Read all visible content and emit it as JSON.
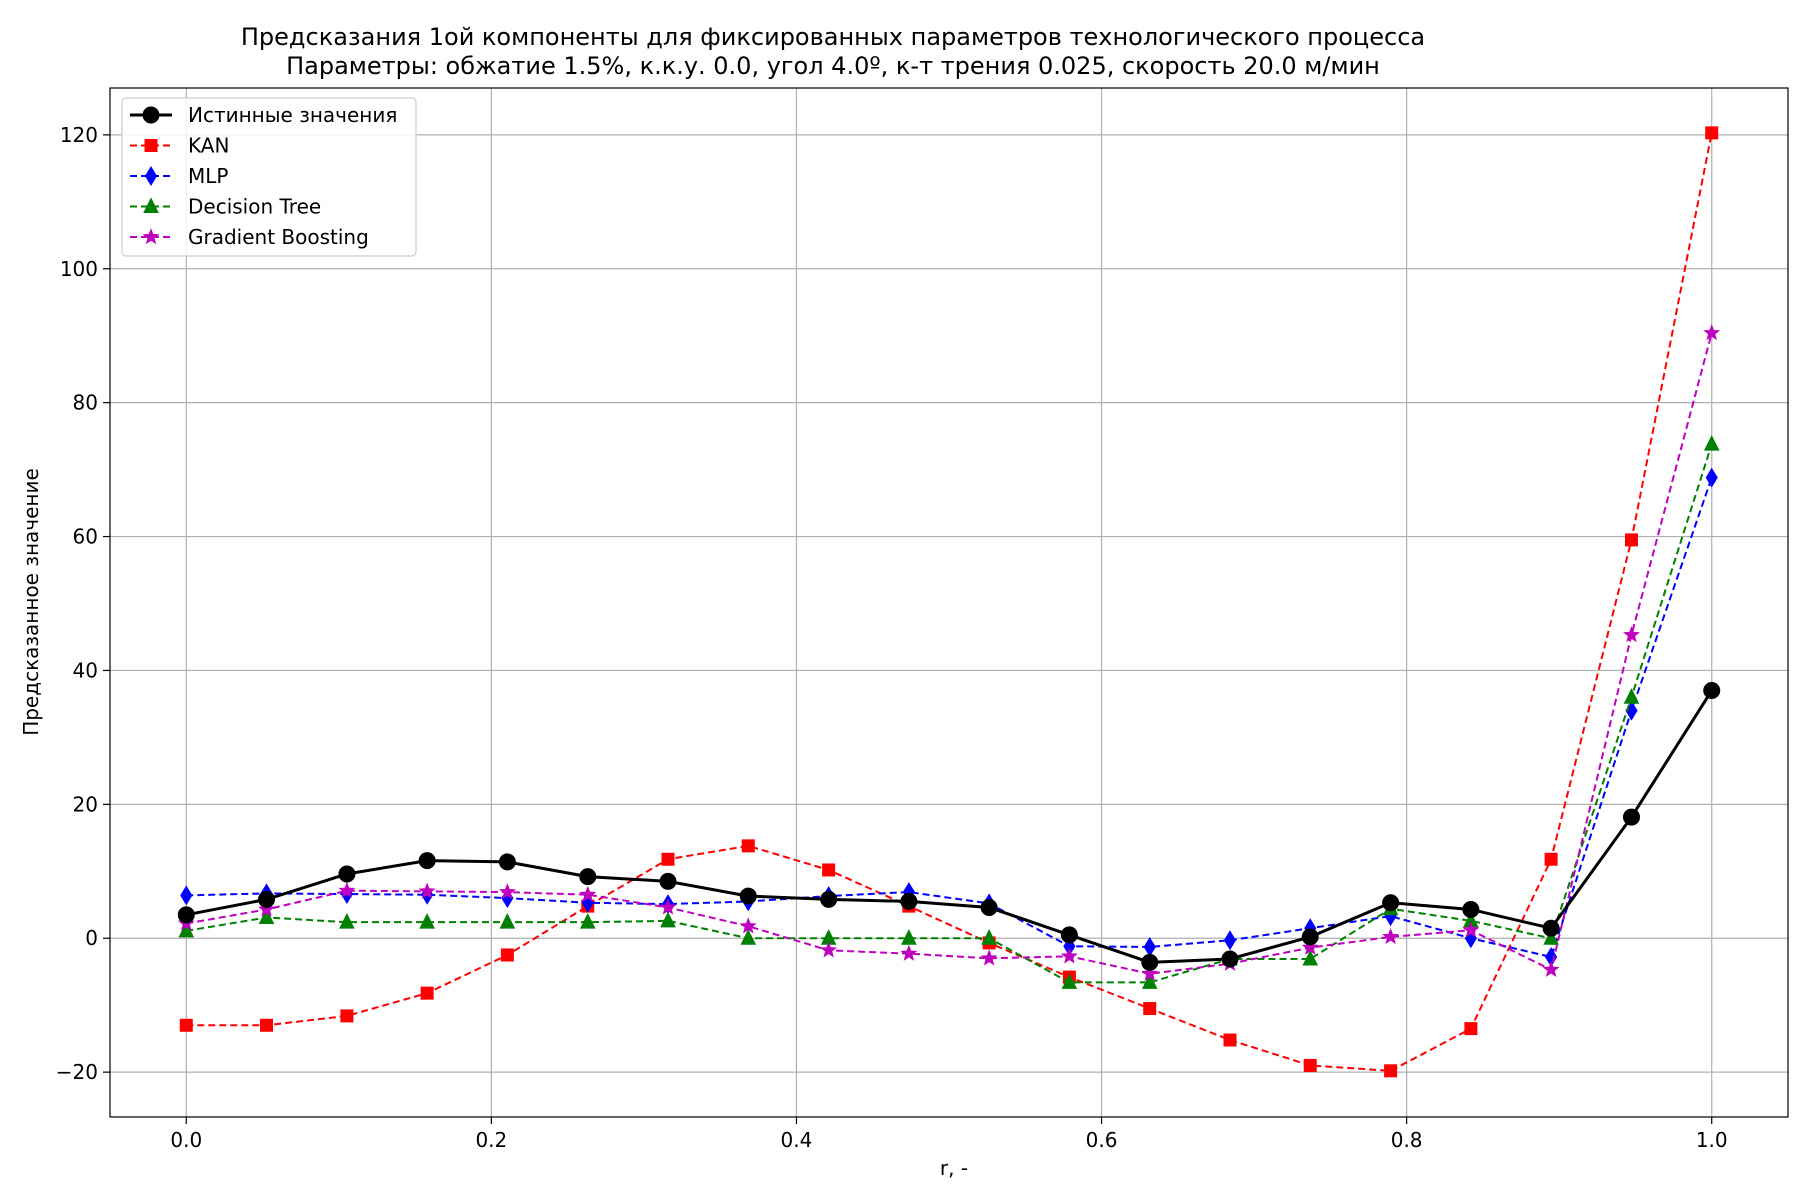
{
  "chart_data": {
    "type": "line",
    "title": "Предсказания 1ой компоненты для фиксированных параметров технологического процесса",
    "subtitle": "Параметры: обжатие 1.5%, к.к.у. 0.0, угол 4.0º, к-т трения 0.025, скорость 20.0 м/мин",
    "xlabel": "r, -",
    "ylabel": "Предсказанное значение",
    "xlim": [
      -0.05,
      1.05
    ],
    "ylim": [
      -26.7,
      127
    ],
    "xticks": [
      0.0,
      0.2,
      0.4,
      0.6,
      0.8,
      1.0
    ],
    "xtick_labels": [
      "0.0",
      "0.2",
      "0.4",
      "0.6",
      "0.8",
      "1.0"
    ],
    "yticks": [
      -20,
      0,
      20,
      40,
      60,
      80,
      100,
      120
    ],
    "ytick_labels": [
      "−20",
      "0",
      "20",
      "40",
      "60",
      "80",
      "100",
      "120"
    ],
    "grid": true,
    "legend_position": "top-left",
    "x": [
      0.0,
      0.0526,
      0.1053,
      0.1579,
      0.2105,
      0.2632,
      0.3158,
      0.3684,
      0.4211,
      0.4737,
      0.5263,
      0.5789,
      0.6316,
      0.6842,
      0.7368,
      0.7895,
      0.8421,
      0.8947,
      0.9474,
      1.0
    ],
    "series": [
      {
        "name": "Истинные значения",
        "color": "#000000",
        "marker": "circle",
        "dashed": false,
        "values": [
          3.5,
          5.8,
          9.6,
          11.6,
          11.4,
          9.2,
          8.5,
          6.3,
          5.8,
          5.5,
          4.6,
          0.5,
          -3.6,
          -3.1,
          0.2,
          5.3,
          4.3,
          1.5,
          18.1,
          37.0
        ]
      },
      {
        "name": "KAN",
        "color": "#ff0000",
        "marker": "square",
        "dashed": true,
        "values": [
          -13.0,
          -13.0,
          -11.6,
          -8.2,
          -2.5,
          4.8,
          11.8,
          13.8,
          10.2,
          4.8,
          -0.7,
          -5.8,
          -10.5,
          -15.2,
          -19.0,
          -19.8,
          -13.5,
          11.8,
          59.5,
          120.3
        ]
      },
      {
        "name": "MLP",
        "color": "#0000ff",
        "marker": "thin-diamond",
        "dashed": true,
        "values": [
          6.4,
          6.7,
          6.6,
          6.5,
          6.0,
          5.3,
          5.1,
          5.5,
          6.3,
          6.9,
          5.2,
          -1.2,
          -1.3,
          -0.3,
          1.5,
          3.3,
          0.0,
          -2.8,
          34.0,
          68.8
        ]
      },
      {
        "name": "Decision Tree",
        "color": "#008000",
        "marker": "triangle",
        "dashed": true,
        "values": [
          1.1,
          3.1,
          2.4,
          2.4,
          2.4,
          2.4,
          2.6,
          0.0,
          0.0,
          0.0,
          0.0,
          -6.6,
          -6.6,
          -3.1,
          -3.1,
          4.4,
          2.6,
          0.0,
          36.0,
          73.8
        ]
      },
      {
        "name": "Gradient Boosting",
        "color": "#bf00bf",
        "marker": "star",
        "dashed": true,
        "values": [
          2.2,
          4.3,
          7.1,
          7.0,
          6.9,
          6.5,
          4.6,
          1.8,
          -1.8,
          -2.3,
          -3.0,
          -2.7,
          -5.3,
          -3.8,
          -1.4,
          0.2,
          1.2,
          -4.7,
          45.3,
          90.4
        ]
      }
    ]
  }
}
